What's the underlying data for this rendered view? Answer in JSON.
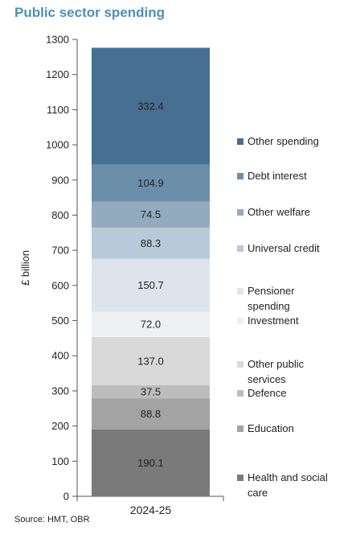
{
  "title": "Public sector spending",
  "source": "Source: HMT, OBR",
  "chart_data": {
    "type": "bar",
    "stacked": true,
    "categories": [
      "2024-25"
    ],
    "ylabel": "£ billion",
    "xlabel": "",
    "ylim": [
      0,
      1300
    ],
    "yticks": [
      0,
      100,
      200,
      300,
      400,
      500,
      600,
      700,
      800,
      900,
      1000,
      1100,
      1200,
      1300
    ],
    "grid": false,
    "legend_position": "right",
    "series": [
      {
        "name": "Health and social care",
        "legend_lines": [
          "Health and social",
          "care"
        ],
        "values": [
          190.1
        ],
        "label": "190.1",
        "color": "#7a7a7a"
      },
      {
        "name": "Education",
        "legend_lines": [
          "Education"
        ],
        "values": [
          88.8
        ],
        "label": "88.8",
        "color": "#a3a3a3"
      },
      {
        "name": "Defence",
        "legend_lines": [
          "Defence"
        ],
        "values": [
          37.5
        ],
        "label": "37.5",
        "color": "#bdbdbd"
      },
      {
        "name": "Other public services",
        "legend_lines": [
          "Other public",
          "services"
        ],
        "values": [
          137.0
        ],
        "label": "137.0",
        "color": "#d9d9d9"
      },
      {
        "name": "Investment",
        "legend_lines": [
          "Investment"
        ],
        "values": [
          72.0
        ],
        "label": "72.0",
        "color": "#eef1f4"
      },
      {
        "name": "Pensioner spending",
        "legend_lines": [
          "Pensioner",
          "spending"
        ],
        "values": [
          150.7
        ],
        "label": "150.7",
        "color": "#dde4ec"
      },
      {
        "name": "Universal credit",
        "legend_lines": [
          "Universal credit"
        ],
        "values": [
          88.3
        ],
        "label": "88.3",
        "color": "#b8cad9"
      },
      {
        "name": "Other welfare",
        "legend_lines": [
          "Other welfare"
        ],
        "values": [
          74.5
        ],
        "label": "74.5",
        "color": "#93abbf"
      },
      {
        "name": "Debt interest",
        "legend_lines": [
          "Debt interest"
        ],
        "values": [
          104.9
        ],
        "label": "104.9",
        "color": "#6b8fab"
      },
      {
        "name": "Other spending",
        "legend_lines": [
          "Other spending"
        ],
        "values": [
          332.4
        ],
        "label": "332.4",
        "color": "#466f91"
      }
    ]
  }
}
